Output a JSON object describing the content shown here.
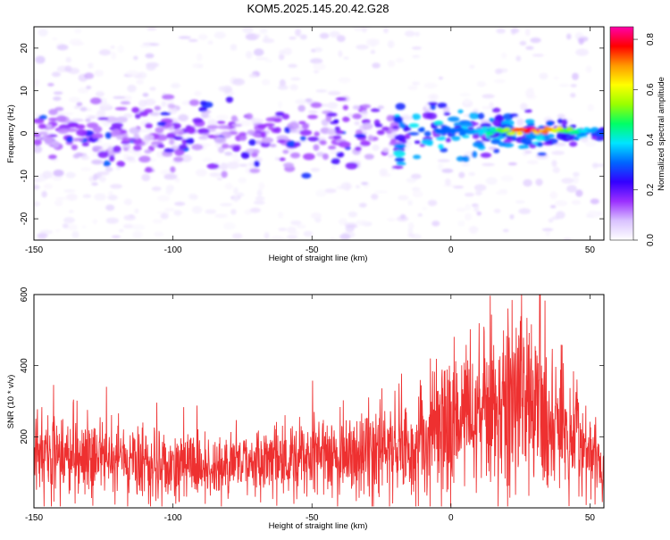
{
  "figure": {
    "title": "KOM5.2025.145.20.42.G28"
  },
  "chart_data": [
    {
      "type": "heatmap",
      "xlabel": "Height of straight line (km)",
      "ylabel": "Frequency (Hz)",
      "xlim": [
        -150,
        55
      ],
      "ylim": [
        -25,
        25
      ],
      "x_ticks": [
        "-150",
        "-100",
        "-50",
        "0",
        "50"
      ],
      "y_ticks": [
        "20",
        "10",
        "0",
        "-10",
        "-20"
      ],
      "colorbar": {
        "label": "Normalized spectral amplitude",
        "range": [
          0,
          0.85
        ],
        "ticks": [
          "0.0",
          "0.2",
          "0.4",
          "0.6",
          "0.8"
        ],
        "colormap": [
          "#ffffff",
          "#d9c2ff",
          "#9b30ff",
          "#3300ff",
          "#0066ff",
          "#00e5ff",
          "#00ff66",
          "#99ff00",
          "#ffff00",
          "#ff9900",
          "#ff0000",
          "#ff00aa"
        ]
      },
      "features": [
        {
          "description": "concentrated band near 0 Hz",
          "x_from": -150,
          "x_to": 55,
          "freq": 0,
          "peak_amplitude": 0.85,
          "peak_near_x": 30
        }
      ]
    },
    {
      "type": "line",
      "xlabel": "Height of straight line (km)",
      "ylabel": "SNR (10 * v/v)",
      "xlim": [
        -150,
        55
      ],
      "ylim": [
        0,
        600
      ],
      "x_ticks": [
        "-150",
        "-100",
        "-50",
        "0",
        "50"
      ],
      "y_ticks": [
        "200",
        "400",
        "600"
      ],
      "series": [
        {
          "color": "#ee3030",
          "envelope_x": [
            -150,
            -125,
            -100,
            -75,
            -50,
            -25,
            0,
            10,
            20,
            25,
            30,
            40,
            50,
            55
          ],
          "envelope_mean": [
            150,
            140,
            120,
            120,
            140,
            160,
            240,
            270,
            310,
            320,
            300,
            250,
            140,
            90
          ],
          "max_value": 600,
          "max_near_x": 32
        }
      ]
    }
  ]
}
